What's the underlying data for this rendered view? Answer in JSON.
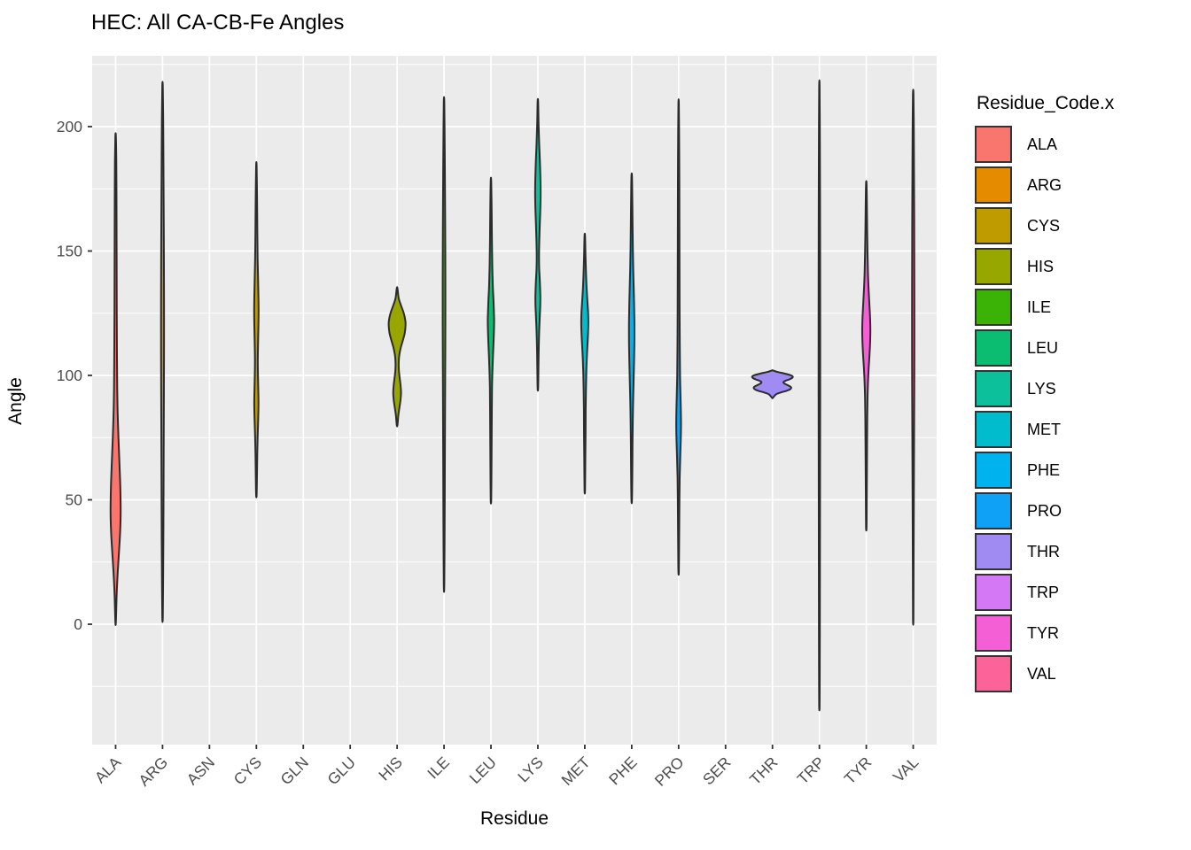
{
  "title": "HEC: All CA-CB-Fe Angles",
  "axes": {
    "x": {
      "label": "Residue",
      "categories": [
        "ALA",
        "ARG",
        "ASN",
        "CYS",
        "GLN",
        "GLU",
        "HIS",
        "ILE",
        "LEU",
        "LYS",
        "MET",
        "PHE",
        "PRO",
        "SER",
        "THR",
        "TRP",
        "TYR",
        "VAL"
      ]
    },
    "y": {
      "label": "Angle",
      "ticks": [
        0,
        50,
        100,
        150,
        200
      ],
      "minor_ticks": [
        -25,
        25,
        75,
        125,
        175,
        225
      ]
    }
  },
  "legend": {
    "title": "Residue_Code.x",
    "entries": [
      {
        "label": "ALA",
        "color": "#F8766D"
      },
      {
        "label": "ARG",
        "color": "#E58B00"
      },
      {
        "label": "CYS",
        "color": "#C09B00"
      },
      {
        "label": "HIS",
        "color": "#98A600"
      },
      {
        "label": "ILE",
        "color": "#3BB306"
      },
      {
        "label": "LEU",
        "color": "#0ABD70"
      },
      {
        "label": "LYS",
        "color": "#0DC09C"
      },
      {
        "label": "MET",
        "color": "#00BCCD"
      },
      {
        "label": "PHE",
        "color": "#00B2EE"
      },
      {
        "label": "PRO",
        "color": "#0EA1F5"
      },
      {
        "label": "THR",
        "color": "#A08BF2"
      },
      {
        "label": "TRP",
        "color": "#D478F5"
      },
      {
        "label": "TYR",
        "color": "#F45FD5"
      },
      {
        "label": "VAL",
        "color": "#FC6398"
      }
    ]
  },
  "chart_data": {
    "type": "violin",
    "title": "HEC: All CA-CB-Fe Angles",
    "xlabel": "Residue",
    "ylabel": "Angle",
    "ylim": [
      -48,
      229
    ],
    "grid": "on",
    "legend_position": "right",
    "categories": [
      "ALA",
      "ARG",
      "ASN",
      "CYS",
      "GLN",
      "GLU",
      "HIS",
      "ILE",
      "LEU",
      "LYS",
      "MET",
      "PHE",
      "PRO",
      "SER",
      "THR",
      "TRP",
      "TYR",
      "VAL"
    ],
    "empty_categories": [
      "ASN",
      "GLN",
      "GLU",
      "SER"
    ],
    "series": [
      {
        "name": "ALA",
        "color": "#F8766D",
        "angle_range": [
          1,
          196
        ],
        "peak_angles": [
          45
        ],
        "profile": [
          [
            196,
            0.3
          ],
          [
            185,
            0.8
          ],
          [
            170,
            1.0
          ],
          [
            155,
            1.1
          ],
          [
            140,
            1.2
          ],
          [
            125,
            1.3
          ],
          [
            110,
            1.5
          ],
          [
            95,
            1.8
          ],
          [
            85,
            2.3
          ],
          [
            75,
            3.2
          ],
          [
            65,
            4.3
          ],
          [
            55,
            5.3
          ],
          [
            45,
            5.7
          ],
          [
            37,
            5.1
          ],
          [
            29,
            3.8
          ],
          [
            21,
            2.4
          ],
          [
            12,
            1.2
          ],
          [
            1,
            0.3
          ]
        ]
      },
      {
        "name": "ARG",
        "color": "#E58B00",
        "angle_range": [
          3,
          216
        ],
        "peak_angles": [
          110
        ],
        "profile": [
          [
            216,
            0.3
          ],
          [
            200,
            0.8
          ],
          [
            180,
            1.1
          ],
          [
            160,
            1.4
          ],
          [
            140,
            1.6
          ],
          [
            120,
            1.7
          ],
          [
            100,
            1.6
          ],
          [
            80,
            1.4
          ],
          [
            60,
            1.2
          ],
          [
            40,
            1.0
          ],
          [
            20,
            0.7
          ],
          [
            3,
            0.3
          ]
        ]
      },
      {
        "name": "CYS",
        "color": "#C09B00",
        "angle_range": [
          52,
          184
        ],
        "peak_angles": [
          125,
          88
        ],
        "profile": [
          [
            184,
            0.3
          ],
          [
            170,
            0.8
          ],
          [
            157,
            1.1
          ],
          [
            147,
            1.4
          ],
          [
            139,
            1.9
          ],
          [
            132,
            2.3
          ],
          [
            126,
            2.5
          ],
          [
            120,
            2.3
          ],
          [
            113,
            1.9
          ],
          [
            106,
            1.6
          ],
          [
            100,
            1.8
          ],
          [
            95,
            2.1
          ],
          [
            89,
            2.4
          ],
          [
            83,
            2.1
          ],
          [
            76,
            1.5
          ],
          [
            68,
            1.0
          ],
          [
            60,
            0.7
          ],
          [
            52,
            0.3
          ]
        ]
      },
      {
        "name": "HIS",
        "color": "#98A600",
        "angle_range": [
          80,
          135
        ],
        "peak_angles": [
          121,
          93
        ],
        "profile": [
          [
            135,
            0.4
          ],
          [
            131,
            1.8
          ],
          [
            128,
            4.5
          ],
          [
            125,
            7.5
          ],
          [
            122,
            9.3
          ],
          [
            120,
            9.5
          ],
          [
            117,
            8.6
          ],
          [
            114,
            6.4
          ],
          [
            111,
            4.0
          ],
          [
            108,
            2.4
          ],
          [
            105,
            1.8
          ],
          [
            102,
            2.0
          ],
          [
            99,
            2.9
          ],
          [
            96,
            3.9
          ],
          [
            93,
            4.4
          ],
          [
            90,
            3.8
          ],
          [
            87,
            2.6
          ],
          [
            84,
            1.4
          ],
          [
            80,
            0.4
          ]
        ]
      },
      {
        "name": "ILE",
        "color": "#3BB306",
        "angle_range": [
          16,
          210
        ],
        "peak_angles": [
          140
        ],
        "profile": [
          [
            210,
            0.3
          ],
          [
            195,
            0.7
          ],
          [
            180,
            1.0
          ],
          [
            160,
            1.3
          ],
          [
            140,
            1.5
          ],
          [
            120,
            1.5
          ],
          [
            100,
            1.3
          ],
          [
            80,
            1.1
          ],
          [
            60,
            0.9
          ],
          [
            40,
            0.7
          ],
          [
            16,
            0.3
          ]
        ]
      },
      {
        "name": "LEU",
        "color": "#0ABD70",
        "angle_range": [
          50,
          178
        ],
        "peak_angles": [
          123
        ],
        "profile": [
          [
            178,
            0.3
          ],
          [
            166,
            0.8
          ],
          [
            154,
            1.1
          ],
          [
            144,
            1.5
          ],
          [
            136,
            2.1
          ],
          [
            130,
            2.9
          ],
          [
            125,
            3.4
          ],
          [
            122,
            3.6
          ],
          [
            118,
            3.4
          ],
          [
            113,
            2.9
          ],
          [
            108,
            2.3
          ],
          [
            102,
            1.7
          ],
          [
            95,
            1.2
          ],
          [
            86,
            1.0
          ],
          [
            74,
            0.8
          ],
          [
            62,
            0.6
          ],
          [
            50,
            0.3
          ]
        ]
      },
      {
        "name": "LYS",
        "color": "#0DC09C",
        "angle_range": [
          95,
          210
        ],
        "peak_angles": [
          173,
          131
        ],
        "profile": [
          [
            210,
            0.3
          ],
          [
            201,
            0.8
          ],
          [
            193,
            1.5
          ],
          [
            186,
            2.3
          ],
          [
            179,
            2.9
          ],
          [
            173,
            3.1
          ],
          [
            167,
            2.8
          ],
          [
            161,
            2.2
          ],
          [
            154,
            1.6
          ],
          [
            148,
            1.3
          ],
          [
            143,
            1.5
          ],
          [
            138,
            2.2
          ],
          [
            132,
            2.8
          ],
          [
            128,
            2.7
          ],
          [
            124,
            2.2
          ],
          [
            118,
            1.5
          ],
          [
            111,
            1.0
          ],
          [
            104,
            0.7
          ],
          [
            95,
            0.3
          ]
        ]
      },
      {
        "name": "MET",
        "color": "#00BCCD",
        "angle_range": [
          54,
          156
        ],
        "peak_angles": [
          122
        ],
        "profile": [
          [
            156,
            0.3
          ],
          [
            148,
            0.8
          ],
          [
            141,
            1.4
          ],
          [
            135,
            2.1
          ],
          [
            129,
            3.1
          ],
          [
            125,
            3.8
          ],
          [
            121,
            4.0
          ],
          [
            117,
            3.7
          ],
          [
            112,
            3.0
          ],
          [
            107,
            2.3
          ],
          [
            101,
            1.7
          ],
          [
            94,
            1.3
          ],
          [
            86,
            1.0
          ],
          [
            77,
            0.9
          ],
          [
            66,
            0.6
          ],
          [
            54,
            0.3
          ]
        ]
      },
      {
        "name": "PHE",
        "color": "#00B2EE",
        "angle_range": [
          50,
          180
        ],
        "peak_angles": [
          118
        ],
        "profile": [
          [
            180,
            0.3
          ],
          [
            170,
            0.7
          ],
          [
            160,
            1.0
          ],
          [
            151,
            1.3
          ],
          [
            143,
            1.7
          ],
          [
            136,
            2.2
          ],
          [
            129,
            2.7
          ],
          [
            123,
            3.0
          ],
          [
            118,
            3.1
          ],
          [
            112,
            3.0
          ],
          [
            106,
            2.7
          ],
          [
            100,
            2.3
          ],
          [
            94,
            1.9
          ],
          [
            88,
            1.5
          ],
          [
            81,
            1.2
          ],
          [
            72,
            0.9
          ],
          [
            61,
            0.7
          ],
          [
            50,
            0.3
          ]
        ]
      },
      {
        "name": "PRO",
        "color": "#0EA1F5",
        "angle_range": [
          21,
          209
        ],
        "peak_angles": [
          80
        ],
        "profile": [
          [
            209,
            0.25
          ],
          [
            193,
            0.6
          ],
          [
            177,
            0.8
          ],
          [
            160,
            0.9
          ],
          [
            143,
            1.0
          ],
          [
            127,
            1.1
          ],
          [
            112,
            1.3
          ],
          [
            100,
            1.6
          ],
          [
            92,
            2.1
          ],
          [
            86,
            2.5
          ],
          [
            80,
            2.7
          ],
          [
            74,
            2.4
          ],
          [
            67,
            1.8
          ],
          [
            59,
            1.2
          ],
          [
            50,
            0.9
          ],
          [
            40,
            0.7
          ],
          [
            30,
            0.5
          ],
          [
            21,
            0.25
          ]
        ]
      },
      {
        "name": "THR",
        "color": "#A08BF2",
        "angle_range": [
          91,
          102
        ],
        "peak_angles": [
          99.5,
          94.5
        ],
        "profile": [
          [
            102,
            0.5
          ],
          [
            101.4,
            5.5
          ],
          [
            100.8,
            13
          ],
          [
            100.2,
            19.5
          ],
          [
            99.6,
            22.8
          ],
          [
            99.0,
            22.2
          ],
          [
            98.4,
            19.0
          ],
          [
            97.9,
            15.0
          ],
          [
            97.4,
            12.6
          ],
          [
            96.8,
            13.2
          ],
          [
            96.2,
            16.5
          ],
          [
            95.6,
            19.8
          ],
          [
            95.0,
            21.2
          ],
          [
            94.4,
            19.8
          ],
          [
            93.8,
            15.8
          ],
          [
            93.2,
            10.0
          ],
          [
            92.4,
            4.0
          ],
          [
            91,
            0.5
          ]
        ]
      },
      {
        "name": "TRP",
        "color": "#D478F5",
        "angle_range": [
          -33,
          216
        ],
        "peak_angles": [
          100
        ],
        "profile": [
          [
            216,
            0.25
          ],
          [
            195,
            0.55
          ],
          [
            170,
            0.75
          ],
          [
            145,
            0.85
          ],
          [
            120,
            0.9
          ],
          [
            95,
            0.9
          ],
          [
            70,
            0.8
          ],
          [
            45,
            0.7
          ],
          [
            20,
            0.6
          ],
          [
            -5,
            0.5
          ],
          [
            -20,
            0.4
          ],
          [
            -33,
            0.25
          ]
        ]
      },
      {
        "name": "TYR",
        "color": "#F45FD5",
        "angle_range": [
          39,
          177
        ],
        "peak_angles": [
          118
        ],
        "profile": [
          [
            177,
            0.3
          ],
          [
            168,
            0.7
          ],
          [
            158,
            1.0
          ],
          [
            149,
            1.4
          ],
          [
            141,
            1.9
          ],
          [
            134,
            2.7
          ],
          [
            128,
            3.6
          ],
          [
            123,
            4.3
          ],
          [
            118,
            4.6
          ],
          [
            113,
            4.3
          ],
          [
            108,
            3.6
          ],
          [
            103,
            2.7
          ],
          [
            97,
            1.9
          ],
          [
            91,
            1.4
          ],
          [
            83,
            1.1
          ],
          [
            73,
            0.9
          ],
          [
            61,
            0.7
          ],
          [
            50,
            0.5
          ],
          [
            39,
            0.3
          ]
        ]
      },
      {
        "name": "VAL",
        "color": "#FC6398",
        "angle_range": [
          2,
          213
        ],
        "peak_angles": [
          110
        ],
        "profile": [
          [
            213,
            0.3
          ],
          [
            198,
            0.7
          ],
          [
            182,
            0.9
          ],
          [
            165,
            1.1
          ],
          [
            148,
            1.2
          ],
          [
            130,
            1.3
          ],
          [
            112,
            1.3
          ],
          [
            94,
            1.2
          ],
          [
            76,
            1.0
          ],
          [
            58,
            0.8
          ],
          [
            40,
            0.6
          ],
          [
            20,
            0.4
          ],
          [
            2,
            0.25
          ]
        ]
      }
    ],
    "profile_units": "pairs of [angle_degrees, half_width_px]"
  },
  "style": {
    "panel_bg": "#EBEBEB",
    "grid_color": "#FFFFFF",
    "violin_outline": "#2B2B2B",
    "tick_mark_color": "#333333",
    "axis_text_color": "#4D4D4D",
    "text_color": "#000000",
    "background": "#FFFFFF"
  }
}
